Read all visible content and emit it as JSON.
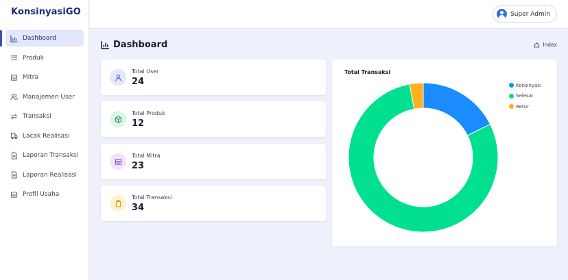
{
  "brand": "KonsinyasiGO",
  "user": {
    "name": "Super Admin"
  },
  "sidebar": {
    "items": [
      {
        "label": "Dashboard",
        "icon": "bar-chart-icon",
        "active": true
      },
      {
        "label": "Produk",
        "icon": "list-icon"
      },
      {
        "label": "Mitra",
        "icon": "store-icon"
      },
      {
        "label": "Manajemen User",
        "icon": "users-icon"
      },
      {
        "label": "Transaksi",
        "icon": "repeat-icon"
      },
      {
        "label": "Lacak Realisasi",
        "icon": "truck-icon"
      },
      {
        "label": "Laporan Transaksi",
        "icon": "document-icon"
      },
      {
        "label": "Laporan Realisasi",
        "icon": "document-icon"
      },
      {
        "label": "Profil Usaha",
        "icon": "store-icon"
      }
    ]
  },
  "page": {
    "title": "Dashboard",
    "breadcrumb": "Index"
  },
  "cards": [
    {
      "label": "Total User",
      "value": "24",
      "icon": "user-icon",
      "bg": "#e3e8fb",
      "color": "#3a55c8"
    },
    {
      "label": "Total Produk",
      "value": "12",
      "icon": "box-icon",
      "bg": "#dcf6e8",
      "color": "#1e9a5a"
    },
    {
      "label": "Total Mitra",
      "value": "23",
      "icon": "store-icon",
      "bg": "#f0e3fa",
      "color": "#8a3ec2"
    },
    {
      "label": "Total Transaksi",
      "value": "34",
      "icon": "clipboard-icon",
      "bg": "#fdf3cd",
      "color": "#c9960c"
    }
  ],
  "chart_data": {
    "type": "pie",
    "style": "donut",
    "title": "Total Transaksi",
    "legend_position": "top-right",
    "categories": [
      "Konsinyasi",
      "Selesai",
      "Retur"
    ],
    "values": [
      6,
      27,
      1
    ],
    "colors": [
      "#1a8cff",
      "#00e090",
      "#ffb01a"
    ]
  }
}
